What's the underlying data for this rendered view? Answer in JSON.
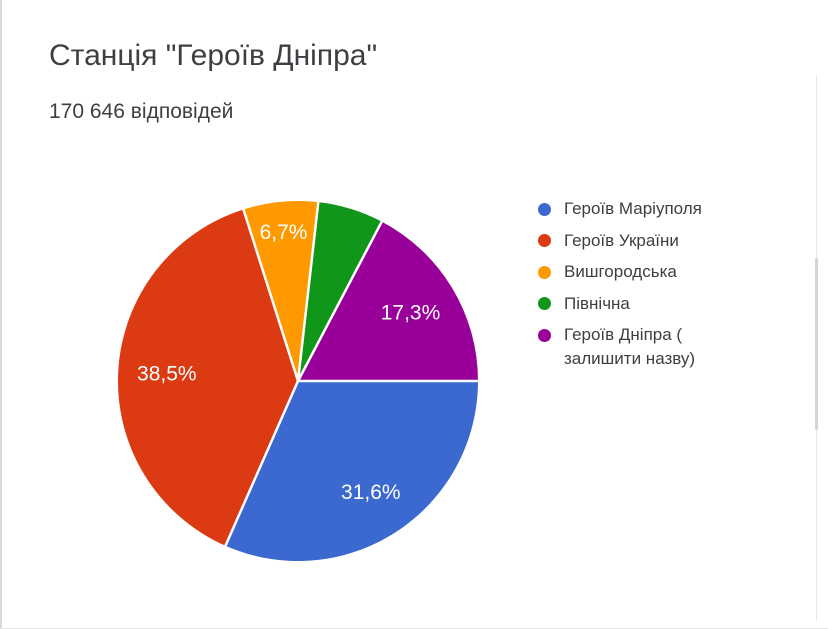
{
  "page": {
    "title": "Станція \"Героїв Дніпра\"",
    "subtitle": "170 646 відповідей"
  },
  "chart_data": {
    "type": "pie",
    "title": "Станція \"Героїв Дніпра\"",
    "subtitle": "170 646 відповідей",
    "total_responses": 170646,
    "start_angle": "3-oclock-clockwise",
    "legend_position": "right",
    "separator_color": "#ffffff",
    "series": [
      {
        "name": "Героїв Маріуполя",
        "percent": 31.6,
        "percent_label": "31,6%",
        "color": "#3b69d0",
        "label_radius_frac": 0.74,
        "label_lines": [
          "Героїв Маріуполя"
        ]
      },
      {
        "name": "Героїв України",
        "percent": 38.5,
        "percent_label": "38,5%",
        "color": "#db3a12",
        "label_radius_frac": 0.73,
        "label_lines": [
          "Героїв України"
        ]
      },
      {
        "name": "Вишгородська",
        "percent": 6.7,
        "percent_label": "6,7%",
        "color": "#ff9900",
        "label_radius_frac": 0.83,
        "label_lines": [
          "Вишгородська"
        ]
      },
      {
        "name": "Північна",
        "percent": 5.9,
        "percent_label": "",
        "color": "#109618",
        "label_radius_frac": 0,
        "label_lines": [
          "Північна"
        ]
      },
      {
        "name": "Героїв Дніпра ( залишити назву)",
        "percent": 17.3,
        "percent_label": "17,3%",
        "color": "#990099",
        "label_radius_frac": 0.73,
        "label_lines": [
          "Героїв Дніпра (",
          "залишити назву)"
        ]
      }
    ]
  }
}
